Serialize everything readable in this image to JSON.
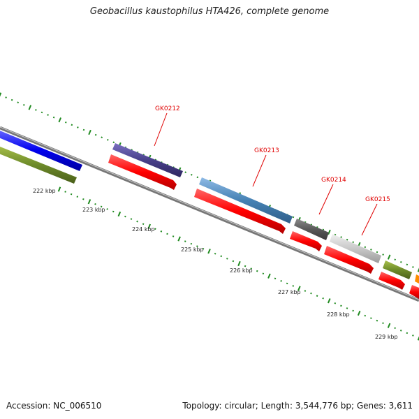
{
  "title": "Geobacillus kaustophilus HTA426, complete genome",
  "footer": {
    "accession": "Accession: NC_006510",
    "summary": "Topology: circular; Length: 3,544,776 bp; Genes: 3,611"
  },
  "scale": {
    "tick_labels": [
      "222 kbp",
      "223 kbp",
      "224 kbp",
      "225 kbp",
      "226 kbp",
      "227 kbp",
      "228 kbp",
      "229 kbp"
    ]
  },
  "genes": {
    "labels": [
      "GK0212",
      "GK0213",
      "GK0214",
      "GK0215"
    ]
  },
  "colors": {
    "backbone": "#8a8a8a",
    "cds_arrow": "#ff0000",
    "label_red": "#e00000",
    "tick_green": "#1f8a1f"
  }
}
